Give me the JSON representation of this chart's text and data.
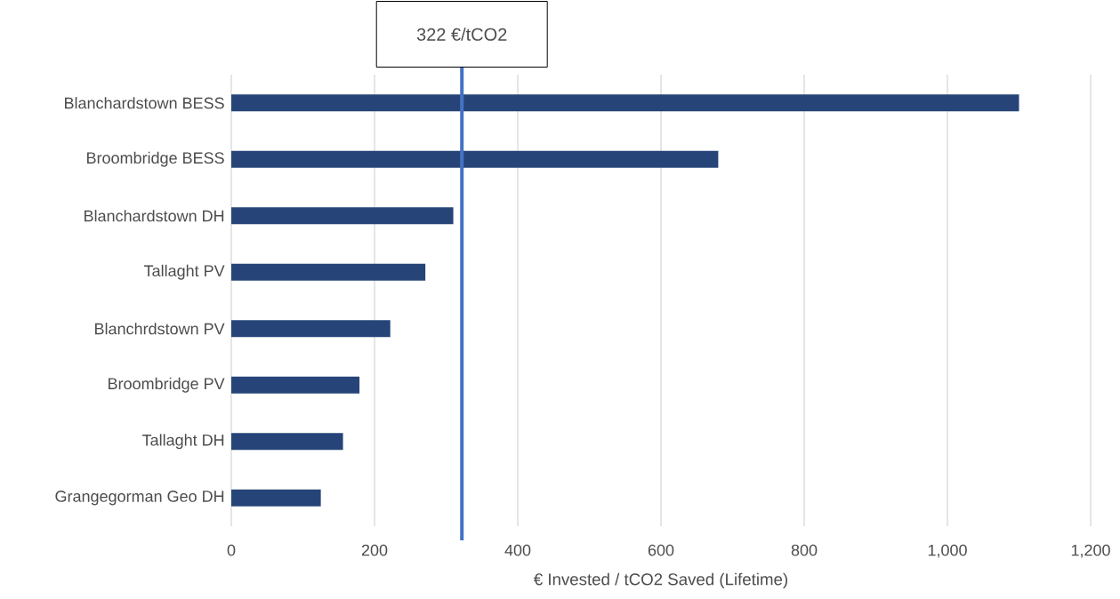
{
  "chart_data": {
    "type": "bar",
    "orientation": "horizontal",
    "categories": [
      "Blanchardstown BESS",
      "Broombridge BESS",
      "Blanchardstown DH",
      "Tallaght PV",
      "Blanchrdstown PV",
      "Broombridge PV",
      "Tallaght DH",
      "Grangegorman Geo DH"
    ],
    "values": [
      1100,
      680,
      310,
      271,
      222,
      179,
      156,
      125
    ],
    "color": "#264478",
    "xlim": [
      0,
      1200
    ],
    "xticks": [
      0,
      200,
      400,
      600,
      800,
      {
        "value": 1000,
        "label": "1,000"
      },
      {
        "value": 1200,
        "label": "1,200"
      }
    ],
    "xlabel": "€ Invested / tCO2 Saved (Lifetime)",
    "grid": "x",
    "ref_lines": [
      {
        "axis": "x",
        "value": 322,
        "label": "322 €/tCO2",
        "color": "#4472c4"
      }
    ]
  }
}
